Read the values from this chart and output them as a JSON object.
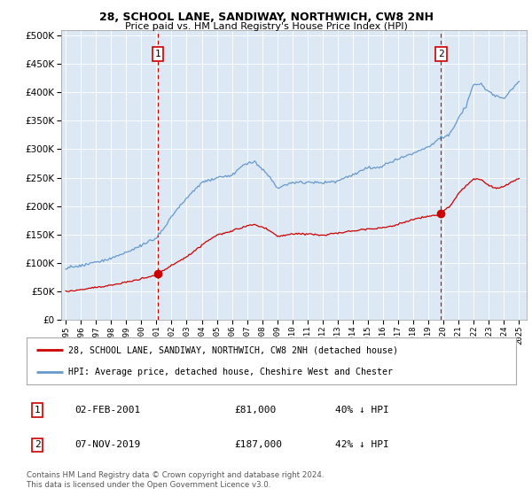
{
  "title1": "28, SCHOOL LANE, SANDIWAY, NORTHWICH, CW8 2NH",
  "title2": "Price paid vs. HM Land Registry's House Price Index (HPI)",
  "background_color": "#dde8f5",
  "hpi_color": "#6699cc",
  "price_color": "#cc0000",
  "marker1_date_x": 2001.08,
  "marker2_date_x": 2019.83,
  "marker1_price": 81000,
  "marker2_price": 187000,
  "ylim": [
    0,
    510000
  ],
  "xlim_start": 1994.7,
  "xlim_end": 2025.5,
  "yticks": [
    0,
    50000,
    100000,
    150000,
    200000,
    250000,
    300000,
    350000,
    400000,
    450000,
    500000
  ],
  "xticks": [
    1995,
    1996,
    1997,
    1998,
    1999,
    2000,
    2001,
    2002,
    2003,
    2004,
    2005,
    2006,
    2007,
    2008,
    2009,
    2010,
    2011,
    2012,
    2013,
    2014,
    2015,
    2016,
    2017,
    2018,
    2019,
    2020,
    2021,
    2022,
    2023,
    2024,
    2025
  ],
  "legend_label_red": "28, SCHOOL LANE, SANDIWAY, NORTHWICH, CW8 2NH (detached house)",
  "legend_label_blue": "HPI: Average price, detached house, Cheshire West and Chester",
  "footnote": "Contains HM Land Registry data © Crown copyright and database right 2024.\nThis data is licensed under the Open Government Licence v3.0.",
  "table_rows": [
    {
      "num": "1",
      "date": "02-FEB-2001",
      "price": "£81,000",
      "hpi": "40% ↓ HPI"
    },
    {
      "num": "2",
      "date": "07-NOV-2019",
      "price": "£187,000",
      "hpi": "42% ↓ HPI"
    }
  ]
}
